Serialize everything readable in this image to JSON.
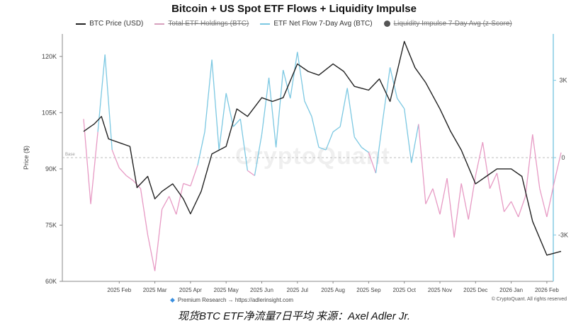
{
  "caption": "现货BTC ETF净流量7日平均 来源：Axel Adler Jr.",
  "footer": {
    "research": "Premium Research → https://adlerinsight.com",
    "copyright": "© CryptoQuant. All rights reserved"
  },
  "watermark": "CryptoQuant",
  "colors": {
    "price": "#222222",
    "flow_pos": "#7cc8e2",
    "flow_neg": "#e79ac4",
    "holdings": "#d7a0bd",
    "liquidity": "#555555",
    "base": "#bbbbbb"
  },
  "chart_data": {
    "type": "line",
    "title": "Bitcoin + US Spot ETF Flows + Liquidity Impulse",
    "ylabel": "Price ($)",
    "ylim": [
      60000,
      126000
    ],
    "y2lim": [
      -4800,
      4800
    ],
    "base_label": "Base",
    "x_ticks": [
      "2025 Feb",
      "2025 Mar",
      "2025 Apr",
      "2025 May",
      "2025 Jun",
      "2025 Jul",
      "2025 Aug",
      "2025 Sep",
      "2025 Oct",
      "2025 Nov",
      "2025 Dec",
      "2026 Jan",
      "2026 Feb"
    ],
    "y_ticks": [
      {
        "value": 60000,
        "label": "60K"
      },
      {
        "value": 75000,
        "label": "75K"
      },
      {
        "value": 90000,
        "label": "90K"
      },
      {
        "value": 105000,
        "label": "105K"
      },
      {
        "value": 120000,
        "label": "120K"
      }
    ],
    "y2_ticks": [
      {
        "value": 3000,
        "label": "3K"
      },
      {
        "value": 0,
        "label": "0"
      },
      {
        "value": -3000,
        "label": "-3K"
      }
    ],
    "legend": [
      {
        "name": "BTC Price (USD)",
        "hidden": false
      },
      {
        "name": "Total ETF Holdings (BTC)",
        "hidden": true
      },
      {
        "name": "ETF Net Flow 7-Day Avg (BTC)",
        "hidden": false
      },
      {
        "name": "Liquidity Impulse 7-Day Avg (z-Score)",
        "hidden": true
      }
    ],
    "series": [
      {
        "name": "BTC Price (USD)",
        "x": [
          0.0,
          0.3,
          0.5,
          0.7,
          1.0,
          1.3,
          1.5,
          1.8,
          2.0,
          2.2,
          2.5,
          2.8,
          3.0,
          3.3,
          3.6,
          4.0,
          4.3,
          4.6,
          5.0,
          5.3,
          5.6,
          6.0,
          6.3,
          6.6,
          7.0,
          7.3,
          7.6,
          8.0,
          8.3,
          8.6,
          9.0,
          9.3,
          9.6,
          10.0,
          10.3,
          10.6,
          11.0,
          11.3,
          11.6,
          12.0,
          12.3,
          12.6,
          13.0,
          13.4
        ],
        "y": [
          100000,
          102000,
          104000,
          98000,
          97000,
          96000,
          85000,
          88000,
          82000,
          84000,
          86000,
          82000,
          78000,
          84000,
          94000,
          96000,
          106000,
          104000,
          109000,
          108000,
          109000,
          118000,
          116000,
          115000,
          118000,
          116000,
          112000,
          111000,
          114000,
          108000,
          124000,
          117000,
          113000,
          106000,
          100000,
          95000,
          86000,
          88000,
          90000,
          90000,
          88000,
          76000,
          67000,
          68000
        ]
      },
      {
        "name": "ETF Net Flow 7-Day Avg (BTC)",
        "x": [
          0.0,
          0.2,
          0.4,
          0.6,
          0.8,
          1.0,
          1.2,
          1.4,
          1.6,
          1.8,
          2.0,
          2.2,
          2.4,
          2.6,
          2.8,
          3.0,
          3.2,
          3.4,
          3.6,
          3.8,
          4.0,
          4.2,
          4.4,
          4.6,
          4.8,
          5.0,
          5.2,
          5.4,
          5.6,
          5.8,
          6.0,
          6.2,
          6.4,
          6.6,
          6.8,
          7.0,
          7.2,
          7.4,
          7.6,
          7.8,
          8.0,
          8.2,
          8.4,
          8.6,
          8.8,
          9.0,
          9.2,
          9.4,
          9.6,
          9.8,
          10.0,
          10.2,
          10.4,
          10.6,
          10.8,
          11.0,
          11.2,
          11.4,
          11.6,
          11.8,
          12.0,
          12.2,
          12.4,
          12.6,
          12.8,
          13.0,
          13.2,
          13.4
        ],
        "y": [
          1500,
          -1800,
          1000,
          4000,
          300,
          -400,
          -700,
          -900,
          -1200,
          -3000,
          -4400,
          -2000,
          -1500,
          -2200,
          -1000,
          -1100,
          -300,
          1000,
          3800,
          300,
          2500,
          1200,
          1500,
          -500,
          -700,
          900,
          3100,
          400,
          3400,
          2300,
          4100,
          2200,
          1600,
          400,
          300,
          1000,
          1200,
          2700,
          800,
          400,
          200,
          -600,
          1500,
          3500,
          2300,
          1900,
          -200,
          1300,
          -1800,
          -1200,
          -2200,
          -800,
          -3100,
          -1000,
          -2400,
          -700,
          600,
          -1200,
          -600,
          -2100,
          -1700,
          -2300,
          -1500,
          900,
          -1200,
          -2300,
          -1000,
          200
        ]
      }
    ]
  }
}
